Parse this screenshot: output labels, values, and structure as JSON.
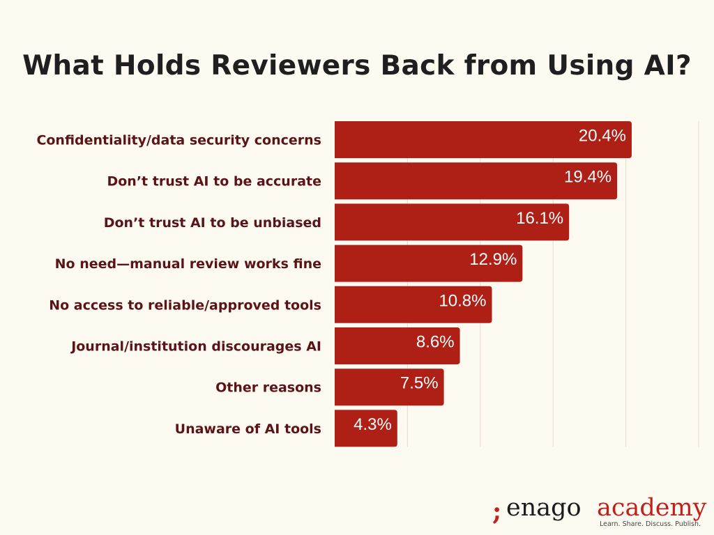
{
  "title": "What Holds Reviewers Back from Using AI?",
  "chart_data": {
    "type": "bar",
    "orientation": "horizontal",
    "categories": [
      "Confidentiality/data security concerns",
      "Don’t trust AI to be accurate",
      "Don’t trust AI to be unbiased",
      "No need—manual review works fine",
      "No access to reliable/approved tools",
      "Journal/institution discourages AI",
      "Other reasons",
      "Unaware of AI tools"
    ],
    "values": [
      20.4,
      19.4,
      16.1,
      12.9,
      10.8,
      8.6,
      7.5,
      4.3
    ],
    "value_labels": [
      "20.4%",
      "19.4%",
      "16.1%",
      "12.9%",
      "10.8%",
      "8.6%",
      "7.5%",
      "4.3%"
    ],
    "xlim": [
      0,
      25
    ],
    "grid": true,
    "gridlines": [
      5,
      10,
      15,
      20,
      25
    ],
    "bar_color": "#ae1f16",
    "legend": "none"
  },
  "logo": {
    "mark": ";",
    "brand": "enago",
    "product": "academy",
    "tagline": "Learn. Share. Discuss. Publish."
  },
  "colors": {
    "background": "#fdfaf2",
    "title": "#1f1f1f",
    "category_label": "#5a1417",
    "accent": "#c0221b"
  }
}
